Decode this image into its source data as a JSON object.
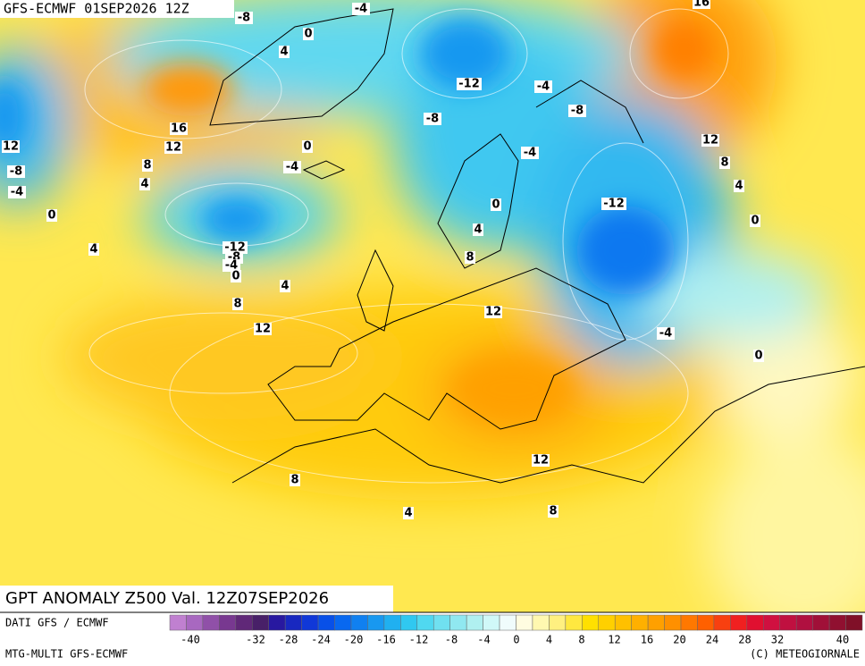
{
  "header": {
    "title": "GFS-ECMWF 01SEP2026 12Z"
  },
  "map": {
    "contour_labels": [
      16,
      -8,
      -4,
      0,
      4,
      -12,
      -4,
      -8,
      -8,
      16,
      12,
      12,
      8,
      0,
      -4,
      -4,
      -8,
      4,
      -4,
      0,
      0,
      -12,
      4,
      4,
      -12,
      -8,
      -4,
      0,
      8,
      4,
      8,
      12,
      12,
      12,
      8,
      4,
      0,
      -4,
      0,
      12,
      8,
      4,
      8
    ]
  },
  "footer": {
    "title": "GPT ANOMALY Z500 Val. 12Z07SEP2026",
    "source": "DATI GFS / ECMWF",
    "model": "MTG-MULTI GFS-ECMWF",
    "copyright": "(C) METEOGIORNALE"
  },
  "colorbar": {
    "colors": [
      "#c080d0",
      "#a868c0",
      "#9050a8",
      "#783890",
      "#602878",
      "#482068",
      "#2818a0",
      "#1828c0",
      "#1038d8",
      "#0850e8",
      "#0868f0",
      "#1080f0",
      "#1898f0",
      "#20b0f0",
      "#30c8f0",
      "#50d8f0",
      "#70e0f0",
      "#90e8f0",
      "#b0f0f0",
      "#d0f8f8",
      "#f0fcfc",
      "#fffce0",
      "#fff8b0",
      "#fff080",
      "#ffe840",
      "#ffe000",
      "#ffd000",
      "#ffc000",
      "#ffb000",
      "#ffa000",
      "#ff9000",
      "#ff7800",
      "#ff6000",
      "#f84010",
      "#f02020",
      "#e01030",
      "#d01040",
      "#c01040",
      "#b01040",
      "#a01038",
      "#901030",
      "#801028"
    ],
    "labels": [
      -40,
      -32,
      -28,
      -24,
      -20,
      -16,
      -12,
      -8,
      -4,
      0,
      4,
      8,
      12,
      16,
      20,
      24,
      28,
      32,
      40
    ]
  }
}
